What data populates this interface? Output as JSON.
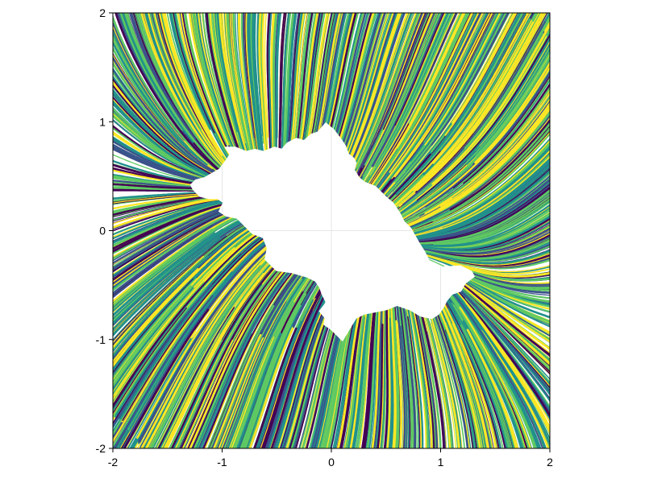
{
  "chart_data": {
    "type": "streamplot",
    "title": "",
    "xlabel": "",
    "ylabel": "",
    "xlim": [
      -2,
      2
    ],
    "ylim": [
      -2,
      2
    ],
    "xticks": [
      -2,
      -1,
      0,
      1,
      2
    ],
    "yticks": [
      -2,
      -1,
      0,
      1,
      2
    ],
    "xtick_labels": [
      "-2",
      "-1",
      "0",
      "1",
      "2"
    ],
    "ytick_labels": [
      "-2",
      "-1",
      "0",
      "1",
      "2"
    ],
    "grid": true,
    "legend": "none",
    "colormap": "viridis",
    "colors": {
      "dark": "#440154",
      "blue": "#3b528b",
      "teal": "#21918c",
      "green": "#5ec962",
      "yellow": "#fde725",
      "background": "#ffffff",
      "grid": "#e6e6e6"
    },
    "central_region": "white fractal-like region without streamlines around the origin, elongated from upper-left (-1.3, 0.4) to lower-right (1.3, -0.4)"
  }
}
